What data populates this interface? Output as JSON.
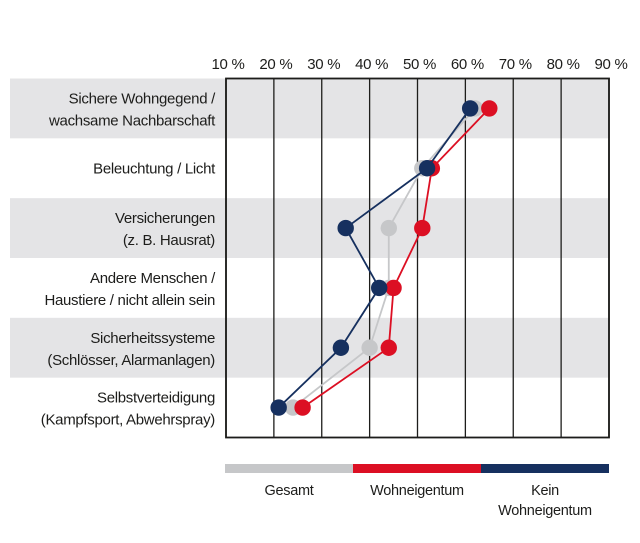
{
  "chart_data": {
    "type": "line",
    "title": "",
    "description": "Dot/line comparison chart of safety measures (German), percentages by home-ownership group",
    "x_axis": {
      "unit": "%",
      "min": 10,
      "max": 90,
      "step": 10,
      "tick_labels": [
        "10 %",
        "20 %",
        "30 %",
        "40 %",
        "50 %",
        "60 %",
        "70 %",
        "80 %",
        "90 %"
      ]
    },
    "grid": "vertical",
    "band_color": "#e4e4e6",
    "band_rows": [
      0,
      2,
      4
    ],
    "axis_color": "#1d1d1b",
    "categories": [
      {
        "line1": "Sichere Wohngegend /",
        "line2": "wachsame Nachbarschaft"
      },
      {
        "line1": "Beleuchtung / Licht",
        "line2": ""
      },
      {
        "line1": "Versicherungen",
        "line2": "(z. B. Hausrat)"
      },
      {
        "line1": "Andere Menschen /",
        "line2": "Haustiere / nicht allein sein"
      },
      {
        "line1": "Sicherheitssysteme",
        "line2": "(Schlösser, Alarmanlagen)"
      },
      {
        "line1": "Selbstverteidigung",
        "line2": "(Kampfsport, Abwehrspray)"
      }
    ],
    "series": [
      {
        "name": "Gesamt",
        "color": "#c6c7c9",
        "values": [
          62,
          51,
          44,
          44,
          40,
          24
        ]
      },
      {
        "name": "Wohneigentum",
        "color": "#dc0f23",
        "values": [
          65,
          53,
          51,
          45,
          44,
          26
        ]
      },
      {
        "name": "Kein Wohneigentum",
        "color": "#16305f",
        "values": [
          61,
          52,
          35,
          42,
          34,
          21
        ]
      }
    ],
    "legend": {
      "position": "bottom",
      "items": [
        {
          "label_lines": [
            "Gesamt"
          ],
          "color": "#c6c7c9"
        },
        {
          "label_lines": [
            "Wohneigentum"
          ],
          "color": "#dc0f23"
        },
        {
          "label_lines": [
            "Kein",
            "Wohneigentum"
          ],
          "color": "#16305f"
        }
      ]
    }
  }
}
